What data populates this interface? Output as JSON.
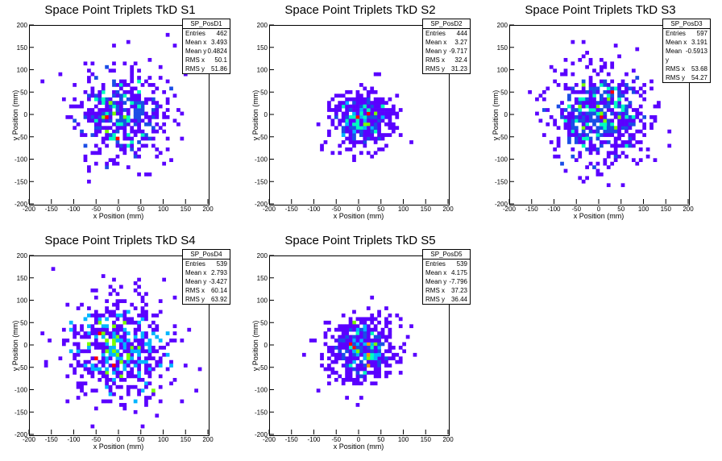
{
  "page": {
    "background": "#ffffff"
  },
  "palette": [
    "#5a00ff",
    "#1a4de6",
    "#00b5ff",
    "#00ffc0",
    "#78ff00",
    "#ff9900",
    "#ff0000"
  ],
  "chart_data": [
    {
      "type": "heatmap",
      "title": "Space Point Triplets TkD S1",
      "xlabel": "x Position (mm)",
      "ylabel": "y Position (mm)",
      "xlim": [
        -200,
        200
      ],
      "ylim": [
        -200,
        200
      ],
      "xticks": [
        -200,
        -150,
        -100,
        -50,
        0,
        50,
        100,
        150,
        200
      ],
      "yticks": [
        -200,
        -150,
        -100,
        -50,
        0,
        50,
        100,
        150,
        200
      ],
      "grid": false,
      "stats": {
        "name": "SP_PosD1",
        "rows": [
          [
            "Entries",
            "462"
          ],
          [
            "Mean x",
            "3.493"
          ],
          [
            "Mean y",
            "0.4824"
          ],
          [
            "RMS x",
            "50.1"
          ],
          [
            "RMS y",
            "51.86"
          ]
        ]
      },
      "cloud": {
        "entries": 462,
        "mean_x": 3.493,
        "mean_y": 0.4824,
        "rms_x": 50.1,
        "rms_y": 51.86,
        "seed": 11,
        "max_level": 6
      }
    },
    {
      "type": "heatmap",
      "title": "Space Point Triplets TkD S2",
      "xlabel": "x Position (mm)",
      "ylabel": "y Position (mm)",
      "xlim": [
        -200,
        200
      ],
      "ylim": [
        -200,
        200
      ],
      "xticks": [
        -200,
        -150,
        -100,
        -50,
        0,
        50,
        100,
        150,
        200
      ],
      "yticks": [
        -200,
        -150,
        -100,
        -50,
        0,
        50,
        100,
        150,
        200
      ],
      "grid": false,
      "stats": {
        "name": "SP_PosD2",
        "rows": [
          [
            "Entries",
            "444"
          ],
          [
            "Mean x",
            "3.27"
          ],
          [
            "Mean y",
            "-9.717"
          ],
          [
            "RMS x",
            "32.4"
          ],
          [
            "RMS y",
            "31.23"
          ]
        ]
      },
      "cloud": {
        "entries": 444,
        "mean_x": 3.27,
        "mean_y": -9.717,
        "rms_x": 32.4,
        "rms_y": 31.23,
        "seed": 23,
        "max_level": 6
      }
    },
    {
      "type": "heatmap",
      "title": "Space Point Triplets TkD S3",
      "xlabel": "x Position (mm)",
      "ylabel": "y Position (mm)",
      "xlim": [
        -200,
        200
      ],
      "ylim": [
        -200,
        200
      ],
      "xticks": [
        -200,
        -150,
        -100,
        -50,
        0,
        50,
        100,
        150,
        200
      ],
      "yticks": [
        -200,
        -150,
        -100,
        -50,
        0,
        50,
        100,
        150,
        200
      ],
      "grid": false,
      "stats": {
        "name": "SP_PosD3",
        "rows": [
          [
            "Entries",
            "597"
          ],
          [
            "Mean x",
            "3.191"
          ],
          [
            "Mean y",
            "-0.5913"
          ],
          [
            "RMS x",
            "53.68"
          ],
          [
            "RMS y",
            "54.27"
          ]
        ]
      },
      "cloud": {
        "entries": 597,
        "mean_x": 3.191,
        "mean_y": -0.5913,
        "rms_x": 53.68,
        "rms_y": 54.27,
        "seed": 37,
        "max_level": 6
      }
    },
    {
      "type": "heatmap",
      "title": "Space Point Triplets TkD S4",
      "xlabel": "x Position (mm)",
      "ylabel": "y Position (mm)",
      "xlim": [
        -200,
        200
      ],
      "ylim": [
        -200,
        200
      ],
      "xticks": [
        -200,
        -150,
        -100,
        -50,
        0,
        50,
        100,
        150,
        200
      ],
      "yticks": [
        -200,
        -150,
        -100,
        -50,
        0,
        50,
        100,
        150,
        200
      ],
      "grid": false,
      "stats": {
        "name": "SP_PosD4",
        "rows": [
          [
            "Entries",
            "539"
          ],
          [
            "Mean x",
            "2.793"
          ],
          [
            "Mean y",
            "-3.427"
          ],
          [
            "RMS x",
            "60.14"
          ],
          [
            "RMS y",
            "63.92"
          ]
        ]
      },
      "cloud": {
        "entries": 539,
        "mean_x": 2.793,
        "mean_y": -3.427,
        "rms_x": 60.14,
        "rms_y": 63.92,
        "seed": 41,
        "max_level": 6
      }
    },
    {
      "type": "heatmap",
      "title": "Space Point Triplets TkD S5",
      "xlabel": "x Position (mm)",
      "ylabel": "y Position (mm)",
      "xlim": [
        -200,
        200
      ],
      "ylim": [
        -200,
        200
      ],
      "xticks": [
        -200,
        -150,
        -100,
        -50,
        0,
        50,
        100,
        150,
        200
      ],
      "yticks": [
        -200,
        -150,
        -100,
        -50,
        0,
        50,
        100,
        150,
        200
      ],
      "grid": false,
      "stats": {
        "name": "SP_PosD5",
        "rows": [
          [
            "Entries",
            "539"
          ],
          [
            "Mean x",
            "4.175"
          ],
          [
            "Mean y",
            "-7.796"
          ],
          [
            "RMS x",
            "37.23"
          ],
          [
            "RMS y",
            "36.44"
          ]
        ]
      },
      "cloud": {
        "entries": 539,
        "mean_x": 4.175,
        "mean_y": -7.796,
        "rms_x": 37.23,
        "rms_y": 36.44,
        "seed": 53,
        "max_level": 6
      }
    }
  ]
}
